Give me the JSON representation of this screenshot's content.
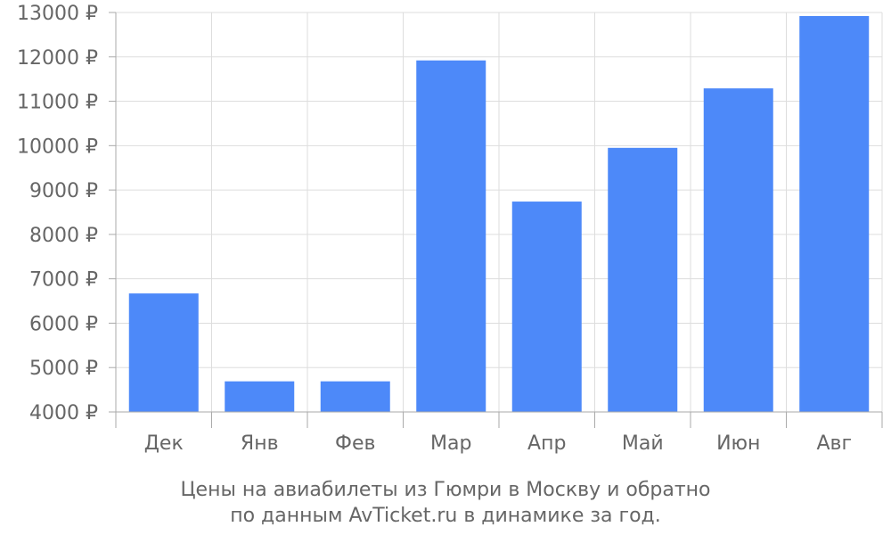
{
  "chart_data": {
    "type": "bar",
    "categories": [
      "Дек",
      "Янв",
      "Фев",
      "Мар",
      "Апр",
      "Май",
      "Июн",
      "Авг"
    ],
    "values": [
      6670,
      4690,
      4690,
      11920,
      8740,
      9950,
      11290,
      12920
    ],
    "ylim": [
      4000,
      13000
    ],
    "yticks": [
      4000,
      5000,
      6000,
      7000,
      8000,
      9000,
      10000,
      11000,
      12000,
      13000
    ],
    "ytick_suffix": " ₽",
    "grid": true,
    "bar_color": "#4d89f9",
    "title": "",
    "xlabel": "",
    "ylabel": ""
  },
  "caption": {
    "line1": "Цены на авиабилеты из Гюмри в Москву и обратно",
    "line2": "по данным AvTicket.ru в динамике за год."
  }
}
